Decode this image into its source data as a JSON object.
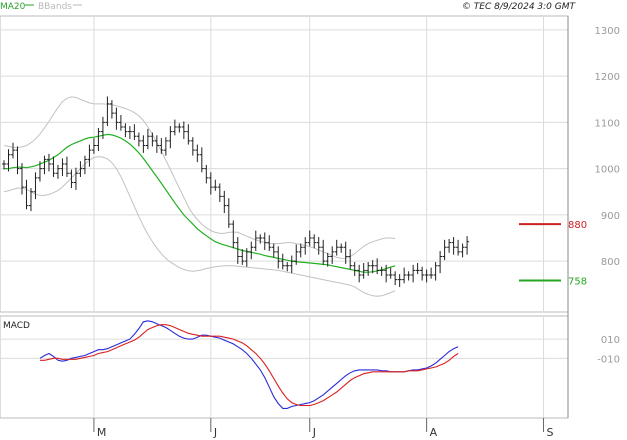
{
  "header": {
    "legend": [
      {
        "label": "MA20",
        "color": "#2e9f2e"
      },
      {
        "label": "BBands",
        "color": "#b9b9b9"
      }
    ],
    "source": "© TEC 8/9/2024 3:0 GMT"
  },
  "colors": {
    "grid": "#dcdcdc",
    "price_bar": "#202020",
    "ma20": "#22b022",
    "bbands": "#c2c2c2",
    "resistance": "#cc2222",
    "support": "#22a822",
    "macd": "#2a2ad8",
    "signal": "#d82020",
    "axis_text": "#9a9a9a"
  },
  "chart_data": [
    {
      "type": "ohlc",
      "title": "",
      "y_ticks": [
        "1300",
        "1200",
        "1100",
        "1000",
        "900",
        "800"
      ],
      "y_tick_values": [
        1300,
        1200,
        1100,
        1000,
        900,
        800
      ],
      "ylim": [
        690,
        1330
      ],
      "x_tick_labels": [
        "M",
        "J",
        "J",
        "A",
        "S"
      ],
      "x_tick_index": [
        20,
        46,
        68,
        94,
        120
      ],
      "n_bars": 125,
      "closes": [
        1010,
        1030,
        1040,
        1000,
        960,
        920,
        950,
        980,
        1000,
        1020,
        1010,
        990,
        1000,
        1010,
        990,
        970,
        990,
        1000,
        1020,
        1040,
        1050,
        1080,
        1100,
        1140,
        1120,
        1100,
        1090,
        1080,
        1080,
        1070,
        1060,
        1050,
        1070,
        1060,
        1050,
        1040,
        1060,
        1080,
        1090,
        1090,
        1080,
        1060,
        1040,
        1030,
        1000,
        980,
        960,
        960,
        940,
        920,
        880,
        840,
        810,
        800,
        820,
        830,
        850,
        850,
        840,
        830,
        820,
        800,
        790,
        790,
        800,
        820,
        830,
        840,
        850,
        840,
        830,
        800,
        810,
        820,
        830,
        830,
        810,
        790,
        780,
        770,
        780,
        790,
        790,
        780,
        780,
        770,
        770,
        760,
        760,
        770,
        770,
        780,
        780,
        770,
        770,
        770,
        790,
        810,
        830,
        840,
        830,
        820,
        830,
        842
      ],
      "ma20": [
        1000,
        1000,
        1002,
        1003,
        1003,
        1002,
        1004,
        1006,
        1010,
        1014,
        1018,
        1024,
        1030,
        1038,
        1046,
        1052,
        1056,
        1060,
        1064,
        1067,
        1068,
        1070,
        1072,
        1074,
        1073,
        1070,
        1066,
        1060,
        1053,
        1044,
        1034,
        1022,
        1009,
        995,
        982,
        968,
        954,
        940,
        926,
        913,
        900,
        890,
        880,
        870,
        862,
        855,
        848,
        842,
        838,
        835,
        832,
        829,
        826,
        823,
        821,
        819,
        817,
        815,
        812,
        810,
        808,
        806,
        804,
        802,
        800,
        799,
        798,
        797,
        796,
        795,
        794,
        793,
        792,
        790,
        788,
        786,
        784,
        782,
        780,
        778,
        776,
        776,
        777,
        779,
        781,
        784,
        787,
        790
      ],
      "bb_upper": [
        1050,
        1048,
        1046,
        1045,
        1047,
        1050,
        1056,
        1064,
        1075,
        1088,
        1102,
        1118,
        1132,
        1145,
        1152,
        1155,
        1154,
        1150,
        1146,
        1142,
        1140,
        1140,
        1140,
        1139,
        1138,
        1136,
        1133,
        1130,
        1126,
        1121,
        1114,
        1104,
        1090,
        1074,
        1056,
        1038,
        1018,
        998,
        978,
        958,
        938,
        918,
        902,
        890,
        880,
        872,
        866,
        862,
        860,
        860,
        862,
        863,
        862,
        858,
        854,
        850,
        846,
        843,
        840,
        838,
        838,
        838,
        839,
        840,
        840,
        838,
        836,
        834,
        831,
        828,
        824,
        820,
        816,
        812,
        808,
        806,
        806,
        810,
        816,
        824,
        832,
        838,
        842,
        845,
        848,
        850,
        850,
        849
      ],
      "bb_lower": [
        950,
        952,
        955,
        958,
        958,
        955,
        950,
        945,
        942,
        942,
        944,
        948,
        953,
        960,
        970,
        980,
        990,
        1000,
        1010,
        1018,
        1024,
        1026,
        1025,
        1021,
        1013,
        1000,
        983,
        962,
        940,
        918,
        896,
        876,
        858,
        842,
        828,
        816,
        806,
        798,
        792,
        786,
        782,
        779,
        778,
        779,
        781,
        784,
        786,
        788,
        789,
        790,
        790,
        790,
        789,
        788,
        787,
        786,
        785,
        784,
        783,
        782,
        781,
        780,
        778,
        776,
        774,
        772,
        770,
        768,
        766,
        764,
        762,
        760,
        758,
        756,
        754,
        752,
        750,
        748,
        744,
        738,
        732,
        728,
        725,
        724,
        725,
        728,
        732,
        736
      ],
      "levels": [
        {
          "label": "880",
          "value": 880,
          "color": "#cc2222"
        },
        {
          "label": "758",
          "value": 758,
          "color": "#22a822"
        }
      ]
    },
    {
      "type": "line",
      "title": "MACD",
      "y_ticks": [
        "010",
        "-010"
      ],
      "y_tick_values": [
        10,
        -10
      ],
      "ylim": [
        -72,
        34
      ],
      "series": [
        {
          "name": "",
          "color": "#2a2ad8",
          "values": [
            -10,
            -7,
            -5,
            -8,
            -12,
            -13,
            -12,
            -10,
            -9,
            -8,
            -7,
            -5,
            -3,
            -1,
            -1,
            0,
            2,
            4,
            6,
            8,
            10,
            15,
            21,
            28,
            29,
            28,
            26,
            24,
            22,
            19,
            16,
            13,
            11,
            10,
            10,
            12,
            14,
            14,
            13,
            12,
            11,
            9,
            7,
            5,
            2,
            -1,
            -5,
            -10,
            -16,
            -22,
            -30,
            -40,
            -50,
            -57,
            -62,
            -62,
            -60,
            -59,
            -58,
            -57,
            -56,
            -54,
            -51,
            -48,
            -44,
            -40,
            -36,
            -32,
            -28,
            -25,
            -23,
            -22,
            -22,
            -22,
            -22,
            -22,
            -23,
            -23,
            -24,
            -24,
            -24,
            -24,
            -23,
            -22,
            -22,
            -21,
            -20,
            -18,
            -15,
            -11,
            -7,
            -3,
            0,
            2
          ]
        },
        {
          "name": "",
          "color": "#d82020",
          "values": [
            -12,
            -12,
            -11,
            -10,
            -10,
            -11,
            -11,
            -11,
            -11,
            -10,
            -9,
            -8,
            -7,
            -5,
            -4,
            -3,
            -1,
            1,
            3,
            5,
            7,
            9,
            12,
            16,
            20,
            22,
            24,
            25,
            25,
            24,
            22,
            20,
            18,
            16,
            15,
            14,
            13,
            13,
            13,
            13,
            13,
            12,
            11,
            10,
            8,
            6,
            3,
            -1,
            -5,
            -10,
            -16,
            -23,
            -31,
            -39,
            -46,
            -52,
            -56,
            -58,
            -59,
            -59,
            -59,
            -58,
            -56,
            -54,
            -51,
            -48,
            -45,
            -41,
            -37,
            -33,
            -30,
            -28,
            -26,
            -25,
            -24,
            -24,
            -24,
            -24,
            -24,
            -24,
            -24,
            -24,
            -23,
            -23,
            -23,
            -22,
            -21,
            -20,
            -19,
            -17,
            -15,
            -12,
            -8,
            -5
          ]
        }
      ]
    }
  ]
}
